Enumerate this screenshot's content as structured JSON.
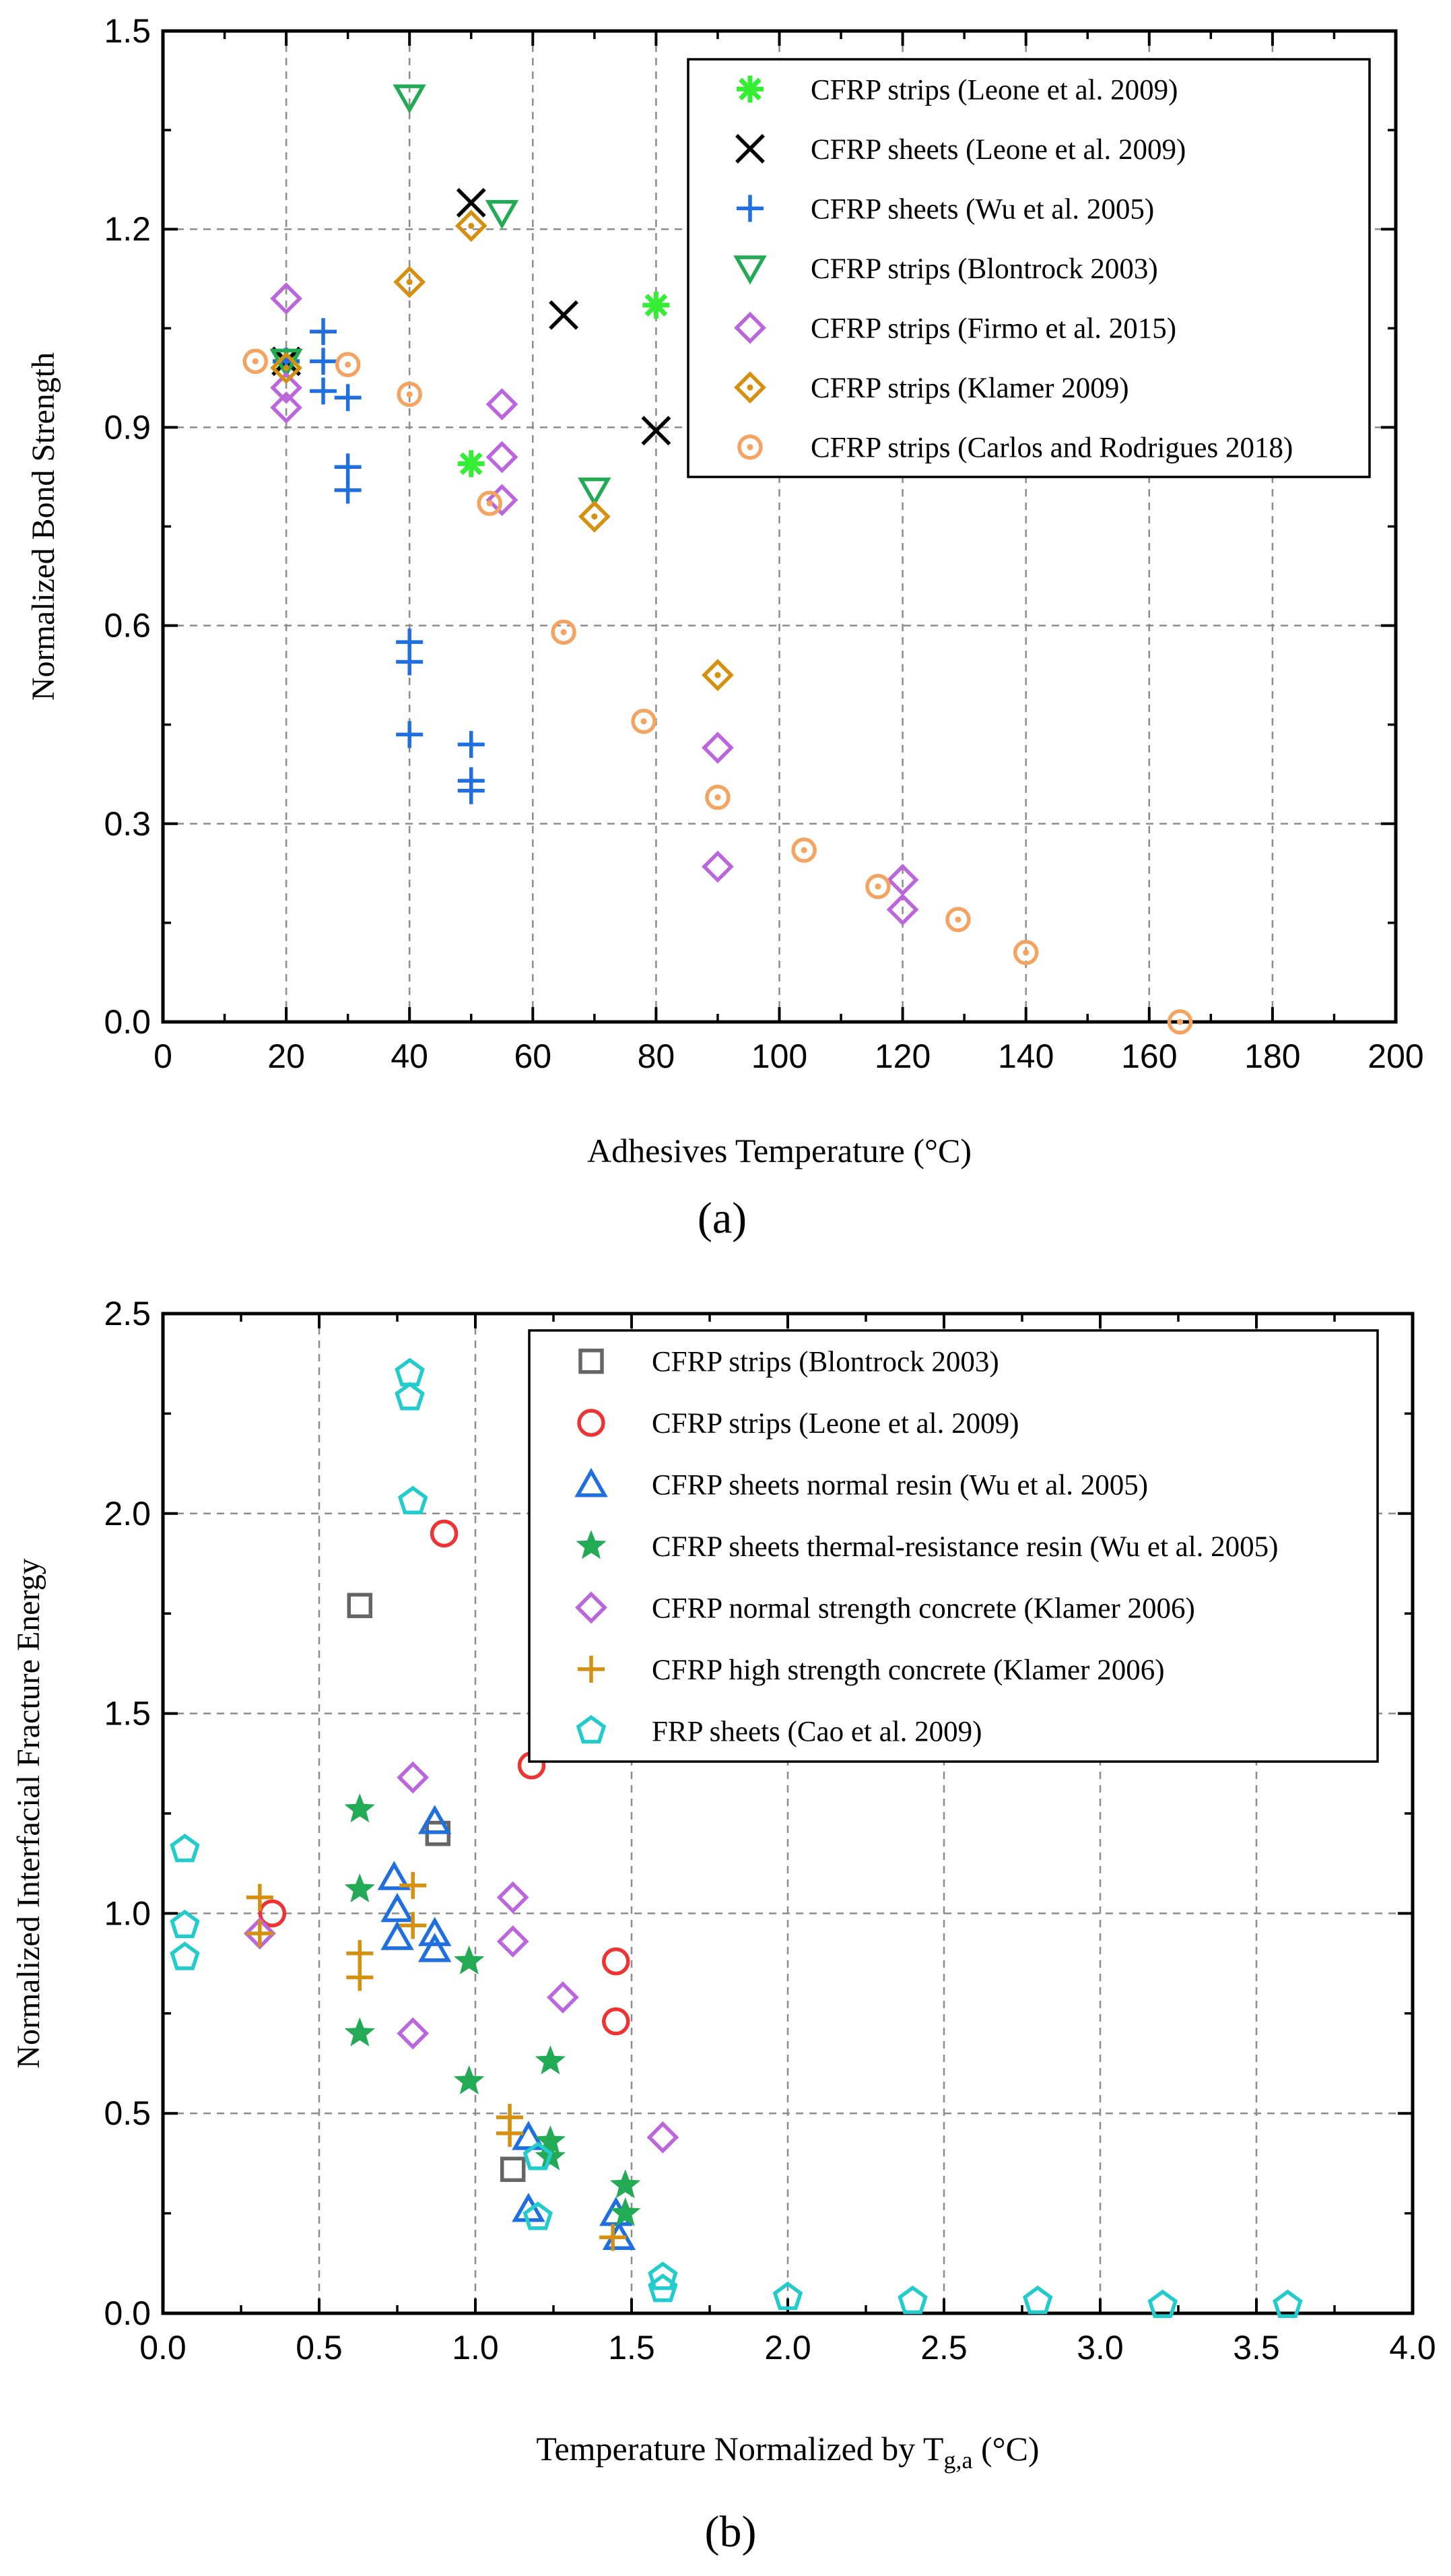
{
  "chart_data": [
    {
      "type": "scatter",
      "panel_label": "(a)",
      "xlabel": "Adhesives Temperature (°C)",
      "ylabel": "Normalized Bond Strength",
      "xlim": [
        0,
        200
      ],
      "ylim": [
        0,
        1.5
      ],
      "xticks": [
        0,
        20,
        40,
        60,
        80,
        100,
        120,
        140,
        160,
        180,
        200
      ],
      "yticks": [
        0.0,
        0.3,
        0.6,
        0.9,
        1.2,
        1.5
      ],
      "tick_decimals_x": 0,
      "tick_decimals_y": 1,
      "grid": true,
      "legend_position": "top-right",
      "series": [
        {
          "name": "CFRP strips (Leone et al. 2009)",
          "marker": "asterisk",
          "color": "#33ee33",
          "points": [
            [
              20,
              1.0
            ],
            [
              50,
              0.845
            ],
            [
              80,
              1.085
            ]
          ]
        },
        {
          "name": "CFRP sheets (Leone et al. 2009)",
          "marker": "x",
          "color": "#000000",
          "points": [
            [
              20,
              1.0
            ],
            [
              50,
              1.24
            ],
            [
              65,
              1.07
            ],
            [
              80,
              0.895
            ]
          ]
        },
        {
          "name": "CFRP sheets (Wu et al. 2005)",
          "marker": "plus",
          "color": "#1f6fe0",
          "points": [
            [
              20,
              1.0
            ],
            [
              26,
              1.045
            ],
            [
              26,
              1.0
            ],
            [
              26,
              0.955
            ],
            [
              30,
              0.945
            ],
            [
              30,
              0.84
            ],
            [
              30,
              0.805
            ],
            [
              40,
              0.575
            ],
            [
              40,
              0.545
            ],
            [
              40,
              0.435
            ],
            [
              50,
              0.42
            ],
            [
              50,
              0.365
            ],
            [
              50,
              0.35
            ]
          ]
        },
        {
          "name": "CFRP strips (Blontrock 2003)",
          "marker": "triangle-down",
          "color": "#22aa55",
          "points": [
            [
              20,
              1.0
            ],
            [
              40,
              1.4
            ],
            [
              55,
              1.225
            ],
            [
              70,
              0.805
            ]
          ]
        },
        {
          "name": "CFRP strips (Firmo et al. 2015)",
          "marker": "diamond",
          "color": "#bb66dd",
          "points": [
            [
              20,
              1.095
            ],
            [
              20,
              0.96
            ],
            [
              20,
              0.93
            ],
            [
              55,
              0.935
            ],
            [
              55,
              0.855
            ],
            [
              55,
              0.79
            ],
            [
              90,
              0.415
            ],
            [
              90,
              0.235
            ],
            [
              120,
              0.215
            ],
            [
              120,
              0.17
            ]
          ]
        },
        {
          "name": "CFRP strips (Klamer 2009)",
          "marker": "diamond-dot",
          "color": "#d4900e",
          "points": [
            [
              20,
              0.99
            ],
            [
              40,
              1.12
            ],
            [
              50,
              1.205
            ],
            [
              70,
              0.765
            ],
            [
              90,
              0.525
            ]
          ]
        },
        {
          "name": "CFRP strips (Carlos and Rodrigues 2018)",
          "marker": "circle-dot",
          "color": "#f4a460",
          "points": [
            [
              15,
              1.0
            ],
            [
              30,
              0.995
            ],
            [
              40,
              0.95
            ],
            [
              53,
              0.785
            ],
            [
              65,
              0.59
            ],
            [
              78,
              0.455
            ],
            [
              90,
              0.34
            ],
            [
              104,
              0.26
            ],
            [
              116,
              0.205
            ],
            [
              129,
              0.155
            ],
            [
              140,
              0.105
            ],
            [
              165,
              0.0
            ]
          ]
        }
      ]
    },
    {
      "type": "scatter",
      "panel_label": "(b)",
      "xlabel": "Temperature Normalized by T",
      "xlabel_subscript": "g,a",
      "xlabel_suffix": " (°C)",
      "ylabel": "Normalized Interfacial Fracture Energy",
      "xlim": [
        0,
        4.0
      ],
      "ylim": [
        0,
        2.5
      ],
      "xticks": [
        0.0,
        0.5,
        1.0,
        1.5,
        2.0,
        2.5,
        3.0,
        3.5,
        4.0
      ],
      "yticks": [
        0.0,
        0.5,
        1.0,
        1.5,
        2.0,
        2.5
      ],
      "tick_decimals_x": 1,
      "tick_decimals_y": 1,
      "grid": true,
      "legend_position": "top-right",
      "series": [
        {
          "name": "CFRP strips (Blontrock 2003)",
          "marker": "square",
          "color": "#666666",
          "points": [
            [
              0.63,
              1.77
            ],
            [
              0.88,
              1.2
            ],
            [
              1.12,
              0.36
            ]
          ]
        },
        {
          "name": "CFRP strips (Leone et al. 2009)",
          "marker": "circle",
          "color": "#ee3333",
          "points": [
            [
              0.35,
              1.0
            ],
            [
              0.9,
              1.95
            ],
            [
              1.18,
              1.37
            ],
            [
              1.45,
              0.88
            ],
            [
              1.45,
              0.73
            ]
          ]
        },
        {
          "name": "CFRP sheets normal resin (Wu et al. 2005)",
          "marker": "triangle-up",
          "color": "#1f6fe0",
          "points": [
            [
              0.74,
              1.09
            ],
            [
              0.75,
              1.01
            ],
            [
              0.75,
              0.94
            ],
            [
              0.87,
              1.23
            ],
            [
              0.87,
              0.95
            ],
            [
              0.87,
              0.91
            ],
            [
              1.17,
              0.44
            ],
            [
              1.17,
              0.26
            ],
            [
              1.45,
              0.25
            ],
            [
              1.46,
              0.19
            ]
          ]
        },
        {
          "name": "CFRP sheets thermal-resistance resin (Wu et al. 2005)",
          "marker": "star",
          "color": "#22aa55",
          "points": [
            [
              0.63,
              1.26
            ],
            [
              0.63,
              1.06
            ],
            [
              0.63,
              0.7
            ],
            [
              0.98,
              0.88
            ],
            [
              0.98,
              0.58
            ],
            [
              1.24,
              0.63
            ],
            [
              1.24,
              0.43
            ],
            [
              1.24,
              0.39
            ],
            [
              1.48,
              0.32
            ],
            [
              1.48,
              0.25
            ]
          ]
        },
        {
          "name": "CFRP normal strength concrete (Klamer 2006)",
          "marker": "diamond",
          "color": "#bb66dd",
          "points": [
            [
              0.31,
              0.95
            ],
            [
              0.8,
              1.34
            ],
            [
              0.8,
              0.7
            ],
            [
              1.12,
              1.04
            ],
            [
              1.12,
              0.93
            ],
            [
              1.28,
              0.79
            ],
            [
              1.6,
              0.44
            ]
          ]
        },
        {
          "name": "CFRP high strength concrete (Klamer 2006)",
          "marker": "plus",
          "color": "#d4900e",
          "points": [
            [
              0.31,
              1.04
            ],
            [
              0.31,
              0.95
            ],
            [
              0.63,
              0.9
            ],
            [
              0.63,
              0.84
            ],
            [
              0.8,
              1.07
            ],
            [
              0.8,
              0.97
            ],
            [
              1.11,
              0.49
            ],
            [
              1.11,
              0.45
            ],
            [
              1.44,
              0.19
            ]
          ]
        },
        {
          "name": "FRP sheets (Cao et al. 2009)",
          "marker": "pentagon",
          "color": "#22cccc",
          "points": [
            [
              0.07,
              1.16
            ],
            [
              0.07,
              0.97
            ],
            [
              0.07,
              0.89
            ],
            [
              0.79,
              2.35
            ],
            [
              0.79,
              2.29
            ],
            [
              0.8,
              2.03
            ],
            [
              1.2,
              0.39
            ],
            [
              1.2,
              0.24
            ],
            [
              1.6,
              0.09
            ],
            [
              1.6,
              0.06
            ],
            [
              2.0,
              0.04
            ],
            [
              2.4,
              0.03
            ],
            [
              2.8,
              0.03
            ],
            [
              3.2,
              0.02
            ],
            [
              3.6,
              0.02
            ]
          ]
        }
      ]
    }
  ]
}
